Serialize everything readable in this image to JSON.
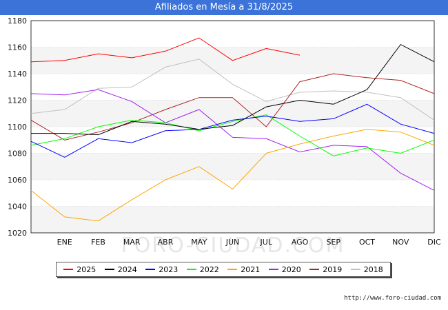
{
  "chart_data": {
    "type": "line",
    "title": "Afiliados en Mesía a 31/8/2025",
    "categories": [
      "",
      "ENE",
      "FEB",
      "MAR",
      "ABR",
      "MAY",
      "JUN",
      "JUL",
      "AGO",
      "SEP",
      "OCT",
      "NOV",
      "DIC"
    ],
    "ylim": [
      1020,
      1180
    ],
    "yticks": [
      1020,
      1040,
      1060,
      1080,
      1100,
      1120,
      1140,
      1160,
      1180
    ],
    "grid": true,
    "legend_position": "bottom",
    "series": [
      {
        "name": "2025",
        "color": "#ff0000",
        "values": [
          1149,
          1150,
          1155,
          1152,
          1157,
          1167,
          1150,
          1159,
          1154,
          null,
          null,
          null,
          null
        ]
      },
      {
        "name": "2024",
        "color": "#000000",
        "values": [
          1095,
          1095,
          1094,
          1104,
          1102,
          1098,
          1101,
          1115,
          1120,
          1117,
          1128,
          1162,
          1149
        ]
      },
      {
        "name": "2023",
        "color": "#0000ff",
        "values": [
          1089,
          1077,
          1091,
          1088,
          1097,
          1098,
          1105,
          1108,
          1104,
          1106,
          1117,
          1102,
          1095
        ]
      },
      {
        "name": "2022",
        "color": "#00ff00",
        "values": [
          1086,
          1091,
          1100,
          1105,
          1103,
          1097,
          1104,
          1109,
          1093,
          1078,
          1084,
          1080,
          1090
        ]
      },
      {
        "name": "2021",
        "color": "#ffa500",
        "values": [
          1052,
          1032,
          1029,
          1045,
          1060,
          1070,
          1053,
          1080,
          1087,
          1093,
          1098,
          1096,
          1086
        ]
      },
      {
        "name": "2020",
        "color": "#a020f0",
        "values": [
          1125,
          1124,
          1128,
          1119,
          1103,
          1113,
          1092,
          1091,
          1081,
          1086,
          1085,
          1065,
          1052
        ]
      },
      {
        "name": "2019",
        "color": "#b22222",
        "values": [
          1105,
          1090,
          1096,
          1103,
          1113,
          1122,
          1122,
          1100,
          1134,
          1140,
          1137,
          1135,
          1125
        ]
      },
      {
        "name": "2018",
        "color": "#c0c0c0",
        "values": [
          1110,
          1113,
          1129,
          1130,
          1145,
          1151,
          1132,
          1119,
          1126,
          1127,
          1126,
          1122,
          1105
        ]
      }
    ],
    "watermark": "FORO-CIUDAD.COM"
  },
  "source": "http://www.foro-ciudad.com"
}
